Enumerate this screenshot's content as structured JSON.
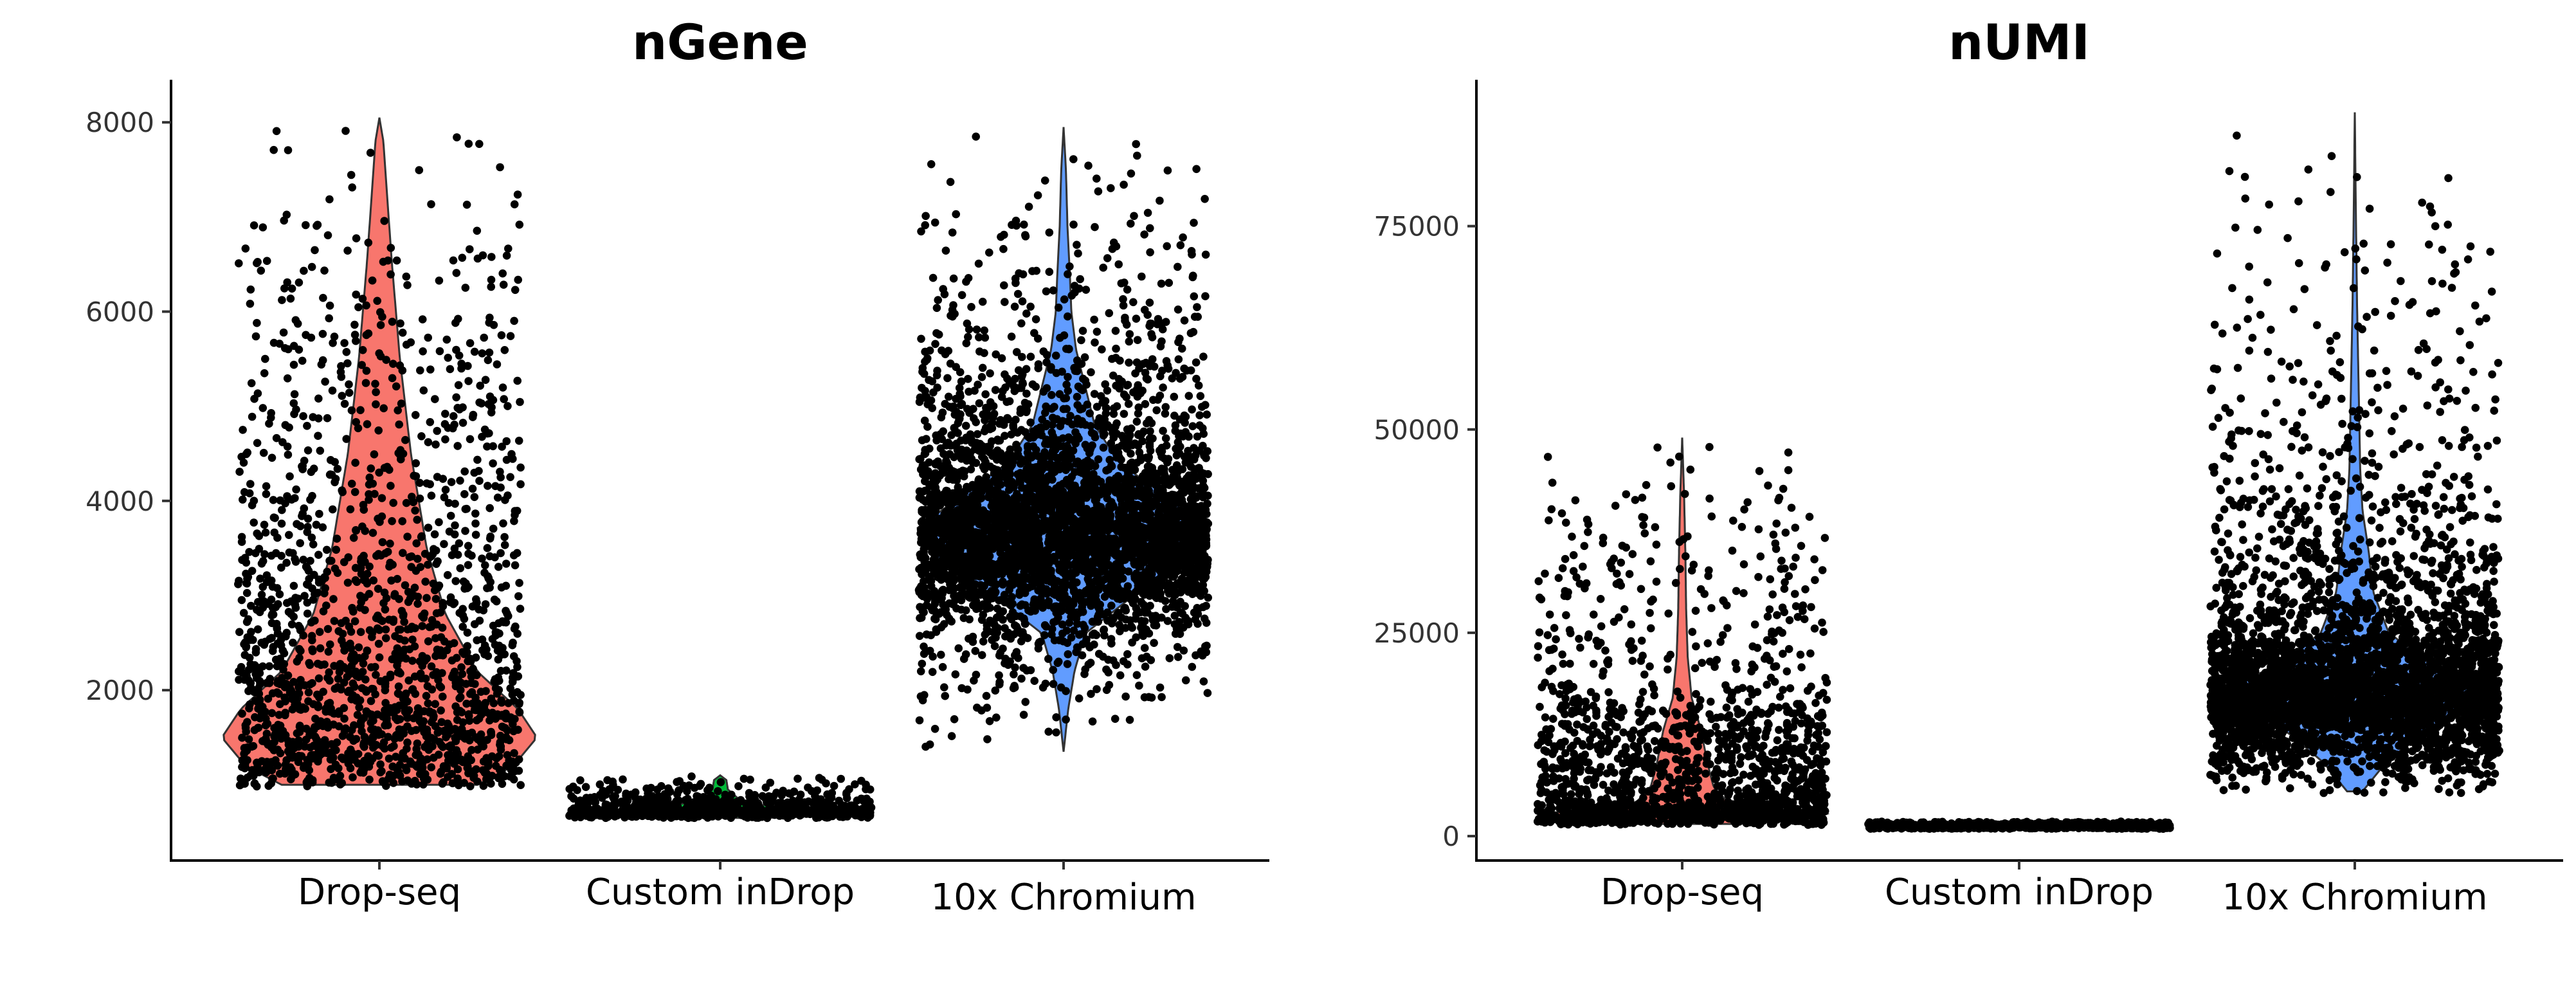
{
  "chart_data": [
    {
      "type": "violin",
      "title": "nGene",
      "xlabel": "",
      "ylabel": "",
      "ylim": [
        200,
        8450
      ],
      "yticks": [
        2000,
        4000,
        6000,
        8000
      ],
      "yticklabels": [
        "2000",
        "4000",
        "6000",
        "8000"
      ],
      "categories": [
        "Drop-seq",
        "Custom inDrop",
        "10x Chromium"
      ],
      "grid": false,
      "legend": "none",
      "series": [
        {
          "category": "Drop-seq",
          "color": "#F8766D",
          "min": 1000,
          "max": 8050,
          "mode": 1500,
          "density": [
            [
              1000,
              0.62
            ],
            [
              1200,
              0.85
            ],
            [
              1500,
              1.0
            ],
            [
              1800,
              0.88
            ],
            [
              2200,
              0.62
            ],
            [
              2800,
              0.42
            ],
            [
              3500,
              0.3
            ],
            [
              4500,
              0.2
            ],
            [
              5500,
              0.13
            ],
            [
              6500,
              0.08
            ],
            [
              7200,
              0.05
            ],
            [
              7800,
              0.025
            ],
            [
              8050,
              0
            ]
          ],
          "n_points": 1700
        },
        {
          "category": "Custom inDrop",
          "color": "#00BA38",
          "min": 650,
          "max": 1100,
          "mode": 700,
          "density": [
            [
              650,
              0.3
            ],
            [
              700,
              1.0
            ],
            [
              760,
              0.35
            ],
            [
              850,
              0.12
            ],
            [
              950,
              0.05
            ],
            [
              1050,
              0.04
            ],
            [
              1100,
              0
            ]
          ],
          "n_points": 800
        },
        {
          "category": "10x Chromium",
          "color": "#619CFF",
          "min": 1350,
          "max": 7950,
          "mode": 3600,
          "density": [
            [
              1350,
              0
            ],
            [
              1800,
              0.03
            ],
            [
              2200,
              0.07
            ],
            [
              2600,
              0.14
            ],
            [
              3000,
              0.45
            ],
            [
              3400,
              0.82
            ],
            [
              3700,
              0.95
            ],
            [
              4000,
              0.7
            ],
            [
              4400,
              0.36
            ],
            [
              4800,
              0.2
            ],
            [
              5200,
              0.14
            ],
            [
              5600,
              0.08
            ],
            [
              6000,
              0.05
            ],
            [
              6400,
              0.04
            ],
            [
              6900,
              0.025
            ],
            [
              7500,
              0.015
            ],
            [
              7950,
              0
            ]
          ],
          "n_points": 3800
        }
      ]
    },
    {
      "type": "violin",
      "title": "nUMI",
      "xlabel": "",
      "ylabel": "",
      "ylim": [
        -3000,
        93000
      ],
      "yticks": [
        0,
        25000,
        50000,
        75000
      ],
      "yticklabels": [
        "0",
        "25000",
        "50000",
        "75000"
      ],
      "categories": [
        "Drop-seq",
        "Custom inDrop",
        "10x Chromium"
      ],
      "grid": false,
      "legend": "none",
      "series": [
        {
          "category": "Drop-seq",
          "color": "#F8766D",
          "min": 1500,
          "max": 49000,
          "mode": 2500,
          "density": [
            [
              1500,
              0.35
            ],
            [
              2500,
              1.0
            ],
            [
              4000,
              0.3
            ],
            [
              6000,
              0.2
            ],
            [
              9000,
              0.16
            ],
            [
              13000,
              0.12
            ],
            [
              17000,
              0.06
            ],
            [
              22000,
              0.035
            ],
            [
              28000,
              0.025
            ],
            [
              35000,
              0.02
            ],
            [
              42000,
              0.012
            ],
            [
              49000,
              0
            ]
          ],
          "n_points": 1700
        },
        {
          "category": "Custom inDrop",
          "color": "#00BA38",
          "min": 900,
          "max": 1800,
          "mode": 1300,
          "density": [
            [
              900,
              0.4
            ],
            [
              1300,
              1.0
            ],
            [
              1700,
              0.3
            ],
            [
              1800,
              0
            ]
          ],
          "n_points": 800
        },
        {
          "category": "10x Chromium",
          "color": "#619CFF",
          "min": 5500,
          "max": 89000,
          "mode": 17000,
          "density": [
            [
              5500,
              0.05
            ],
            [
              9000,
              0.2
            ],
            [
              13000,
              0.45
            ],
            [
              17000,
              0.98
            ],
            [
              21000,
              0.5
            ],
            [
              25000,
              0.22
            ],
            [
              30000,
              0.12
            ],
            [
              35000,
              0.09
            ],
            [
              40000,
              0.05
            ],
            [
              45000,
              0.035
            ],
            [
              50000,
              0.03
            ],
            [
              55000,
              0.025
            ],
            [
              60000,
              0.02
            ],
            [
              65000,
              0.015
            ],
            [
              72000,
              0.01
            ],
            [
              80000,
              0.005
            ],
            [
              89000,
              0
            ]
          ],
          "n_points": 3800
        }
      ]
    }
  ]
}
